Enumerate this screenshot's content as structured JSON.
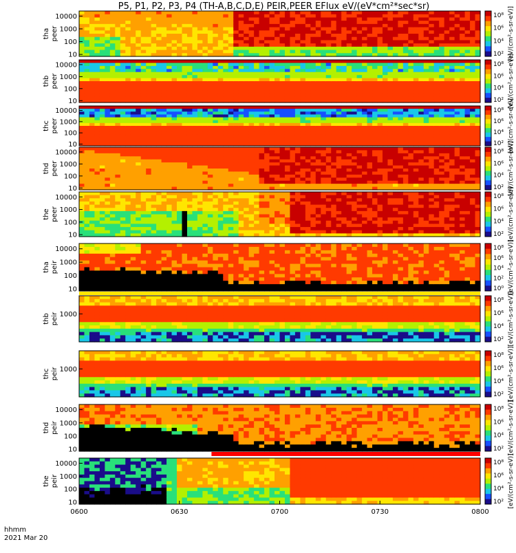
{
  "chart_data": {
    "type": "heatmap",
    "title": "P5, P1, P2, P3, P4 (TH-A,B,C,D,E) PEIR,PEER EFlux eV/(eV*cm²*sec*sr)",
    "x_ticks": [
      "0600",
      "0630",
      "0700",
      "0730",
      "0800"
    ],
    "x_range": [
      "0600",
      "0800"
    ],
    "x_axis_label": "hhmm",
    "date_label": "2021 Mar 20",
    "colorbar_ticks": [
      "10⁸",
      "10⁶",
      "10⁴",
      "10²"
    ],
    "colorbar_ticks_top": [
      "10⁸",
      "10⁶",
      "10⁴",
      "10²",
      "10⁰"
    ],
    "colorbar_units": "[eV/(cm²-s-sr-eV)]",
    "colormap": [
      "#000000",
      "#1a0d8a",
      "#1650ff",
      "#19c7e8",
      "#29e07a",
      "#b4f000",
      "#ffe600",
      "#ffa000",
      "#ff3a00",
      "#c80000"
    ],
    "panels": [
      {
        "probe": "tha",
        "instrument": "peer",
        "label": "tha\npeer",
        "y_ticks": [
          "10000",
          "1000",
          "100",
          "10"
        ],
        "log_scale": true,
        "y_range_eV": [
          7,
          25000
        ]
      },
      {
        "probe": "thb",
        "instrument": "peer",
        "label": "thb\npeer",
        "y_ticks": [
          "10000",
          "1000",
          "100",
          "10"
        ],
        "log_scale": true,
        "y_range_eV": [
          7,
          25000
        ]
      },
      {
        "probe": "thc",
        "instrument": "peer",
        "label": "thc\npeer",
        "y_ticks": [
          "10000",
          "1000",
          "100",
          "10"
        ],
        "log_scale": true,
        "y_range_eV": [
          7,
          25000
        ]
      },
      {
        "probe": "thd",
        "instrument": "peer",
        "label": "thd\npeer",
        "y_ticks": [
          "10000",
          "1000",
          "100",
          "10"
        ],
        "log_scale": true,
        "y_range_eV": [
          7,
          25000
        ]
      },
      {
        "probe": "the",
        "instrument": "peer",
        "label": "the\npeer",
        "y_ticks": [
          "10000",
          "1000",
          "100",
          "10"
        ],
        "log_scale": true,
        "y_range_eV": [
          7,
          25000
        ]
      },
      {
        "probe": "tha",
        "instrument": "peir",
        "label": "tha\npeir",
        "y_ticks": [
          "10000",
          "1000",
          "100",
          "10"
        ],
        "log_scale": true,
        "y_range_eV": [
          7,
          25000
        ]
      },
      {
        "probe": "thb",
        "instrument": "peir",
        "label": "thb\npeir",
        "y_ticks": [
          "1000"
        ],
        "log_scale": true,
        "y_range_eV": [
          7,
          25000
        ]
      },
      {
        "probe": "thc",
        "instrument": "peir",
        "label": "thc\npeir",
        "y_ticks": [
          "1000"
        ],
        "log_scale": true,
        "y_range_eV": [
          7,
          25000
        ]
      },
      {
        "probe": "thd",
        "instrument": "peir",
        "label": "thd\npeir",
        "y_ticks": [
          "10000",
          "1000",
          "100",
          "10"
        ],
        "log_scale": true,
        "y_range_eV": [
          7,
          25000
        ]
      },
      {
        "probe": "the",
        "instrument": "peir",
        "label": "the\npeir",
        "y_ticks": [
          "10000",
          "1000",
          "100",
          "10"
        ],
        "log_scale": true,
        "y_range_eV": [
          7,
          25000
        ]
      }
    ]
  }
}
